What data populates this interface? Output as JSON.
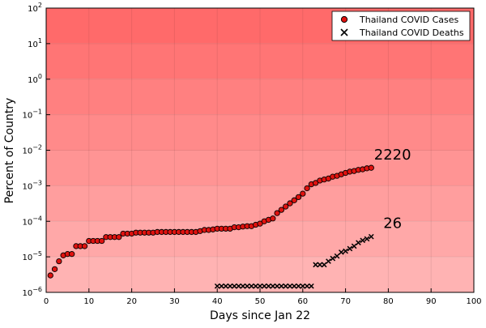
{
  "chart_data": {
    "type": "scatter",
    "xlabel": "Days since Jan 22",
    "ylabel": "Percent of Country",
    "xlim": [
      0,
      100
    ],
    "ylim_log10": [
      -6,
      2
    ],
    "y_scale": "log10",
    "grid": true,
    "legend_position": "top-right",
    "x_ticks": [
      "0",
      "10",
      "20",
      "30",
      "40",
      "50",
      "60",
      "70",
      "80",
      "90",
      "100"
    ],
    "y_tick_exponents": [
      "2",
      "1",
      "0",
      "-1",
      "-2",
      "-3",
      "-4",
      "-5",
      "-6"
    ],
    "series": [
      {
        "name": "Thailand COVID Cases",
        "marker": "circle",
        "color": "#e0120f",
        "x": [
          1,
          2,
          3,
          4,
          5,
          6,
          7,
          8,
          9,
          10,
          11,
          12,
          13,
          14,
          15,
          16,
          17,
          18,
          19,
          20,
          21,
          22,
          23,
          24,
          25,
          26,
          27,
          28,
          29,
          30,
          31,
          32,
          33,
          34,
          35,
          36,
          37,
          38,
          39,
          40,
          41,
          42,
          43,
          44,
          45,
          46,
          47,
          48,
          49,
          50,
          51,
          52,
          53,
          54,
          55,
          56,
          57,
          58,
          59,
          60,
          61,
          62,
          63,
          64,
          65,
          66,
          67,
          68,
          69,
          70,
          71,
          72,
          73,
          74,
          75,
          76
        ],
        "y": [
          3e-06,
          4.5e-06,
          7.5e-06,
          1.1e-05,
          1.2e-05,
          1.2e-05,
          2e-05,
          2e-05,
          2e-05,
          2.8e-05,
          2.8e-05,
          2.8e-05,
          2.8e-05,
          3.6e-05,
          3.6e-05,
          3.6e-05,
          3.6e-05,
          4.5e-05,
          4.5e-05,
          4.5e-05,
          4.8e-05,
          4.8e-05,
          4.8e-05,
          4.8e-05,
          4.8e-05,
          5e-05,
          5e-05,
          5e-05,
          5e-05,
          5e-05,
          5e-05,
          5e-05,
          5e-05,
          5e-05,
          5e-05,
          5.3e-05,
          5.7e-05,
          5.7e-05,
          5.9e-05,
          6.2e-05,
          6.2e-05,
          6.2e-05,
          6.2e-05,
          6.8e-05,
          6.8e-05,
          7.1e-05,
          7.3e-05,
          7.3e-05,
          8e-05,
          8.6e-05,
          0.0001,
          0.00011,
          0.00012,
          0.00017,
          0.00021,
          0.00026,
          0.00032,
          0.00039,
          0.00048,
          0.0006,
          0.00085,
          0.0011,
          0.0012,
          0.0014,
          0.0015,
          0.0016,
          0.0018,
          0.0019,
          0.0021,
          0.0023,
          0.0025,
          0.0026,
          0.0028,
          0.0029,
          0.0031,
          0.0032
        ]
      },
      {
        "name": "Thailand COVID Deaths",
        "marker": "x",
        "color": "#000000",
        "x": [
          40,
          41,
          42,
          43,
          44,
          45,
          46,
          47,
          48,
          49,
          50,
          51,
          52,
          53,
          54,
          55,
          56,
          57,
          58,
          59,
          60,
          61,
          62,
          63,
          64,
          65,
          66,
          67,
          68,
          69,
          70,
          71,
          72,
          73,
          74,
          75,
          76
        ],
        "y": [
          1.5e-06,
          1.5e-06,
          1.5e-06,
          1.5e-06,
          1.5e-06,
          1.5e-06,
          1.5e-06,
          1.5e-06,
          1.5e-06,
          1.5e-06,
          1.5e-06,
          1.5e-06,
          1.5e-06,
          1.5e-06,
          1.5e-06,
          1.5e-06,
          1.5e-06,
          1.5e-06,
          1.5e-06,
          1.5e-06,
          1.5e-06,
          1.5e-06,
          1.5e-06,
          6e-06,
          6e-06,
          6e-06,
          7.5e-06,
          9e-06,
          1.05e-05,
          1.35e-05,
          1.45e-05,
          1.7e-05,
          2e-05,
          2.5e-05,
          2.9e-05,
          3.2e-05,
          3.7e-05
        ]
      }
    ],
    "annotations": [
      {
        "text": "2220",
        "x": 81,
        "y": 0.0055
      },
      {
        "text": "26",
        "x": 81,
        "y": 6.5e-05
      }
    ],
    "background_colors": [
      "#ff6a6a",
      "#ff7575",
      "#ff8080",
      "#ff8a8a",
      "#ff9494",
      "#ff9e9e",
      "#ffa8a8",
      "#ffb3b3"
    ]
  }
}
